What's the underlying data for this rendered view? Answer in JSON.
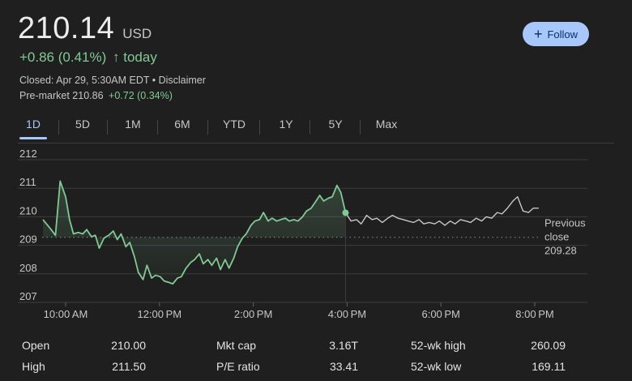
{
  "quote": {
    "price": "210.14",
    "currency": "USD",
    "change_text": "+0.86 (0.41%)",
    "change_arrow": "↑",
    "change_period": "today",
    "closed_text": "Closed: Apr 29, 5:30AM EDT • Disclaimer",
    "premarket_label": "Pre-market 210.86",
    "premarket_change": "+0.72 (0.34%)"
  },
  "follow_button": {
    "label": "Follow",
    "icon": "plus-icon"
  },
  "range_tabs": [
    "1D",
    "5D",
    "1M",
    "6M",
    "YTD",
    "1Y",
    "5Y",
    "Max"
  ],
  "active_tab": "1D",
  "colors": {
    "background": "#1f1f1f",
    "positive": "#81c995",
    "accent": "#a8c7fa",
    "line_after_hours": "#c4c7c5"
  },
  "chart_data": {
    "type": "line",
    "ylim": [
      207,
      212
    ],
    "yticks": [
      207,
      208,
      209,
      210,
      211,
      212
    ],
    "x_range": [
      "09:30",
      "20:30"
    ],
    "xticks": [
      {
        "t": "10:00",
        "label": "10:00 AM"
      },
      {
        "t": "12:00",
        "label": "12:00 PM"
      },
      {
        "t": "14:00",
        "label": "2:00 PM"
      },
      {
        "t": "16:00",
        "label": "4:00 PM"
      },
      {
        "t": "18:00",
        "label": "6:00 PM"
      },
      {
        "t": "20:00",
        "label": "8:00 PM"
      }
    ],
    "previous_close": 209.28,
    "previous_close_label": [
      "Previous",
      "close",
      "209.28"
    ],
    "regular_session": [
      [
        "09:31",
        209.9
      ],
      [
        "09:40",
        209.6
      ],
      [
        "09:47",
        209.35
      ],
      [
        "09:53",
        211.25
      ],
      [
        "10:00",
        210.7
      ],
      [
        "10:05",
        209.9
      ],
      [
        "10:10",
        209.4
      ],
      [
        "10:16",
        209.45
      ],
      [
        "10:22",
        209.4
      ],
      [
        "10:27",
        209.55
      ],
      [
        "10:33",
        209.3
      ],
      [
        "10:38",
        209.35
      ],
      [
        "10:43",
        208.9
      ],
      [
        "10:49",
        209.25
      ],
      [
        "10:55",
        209.35
      ],
      [
        "11:01",
        209.5
      ],
      [
        "11:06",
        209.2
      ],
      [
        "11:11",
        209.4
      ],
      [
        "11:17",
        208.95
      ],
      [
        "11:22",
        209.1
      ],
      [
        "11:28",
        208.6
      ],
      [
        "11:33",
        208.05
      ],
      [
        "11:39",
        207.8
      ],
      [
        "11:44",
        208.3
      ],
      [
        "11:50",
        207.85
      ],
      [
        "11:55",
        207.95
      ],
      [
        "12:01",
        207.9
      ],
      [
        "12:06",
        207.75
      ],
      [
        "12:12",
        207.7
      ],
      [
        "12:17",
        207.65
      ],
      [
        "12:23",
        207.85
      ],
      [
        "12:28",
        207.9
      ],
      [
        "12:34",
        208.2
      ],
      [
        "12:40",
        208.4
      ],
      [
        "12:45",
        208.5
      ],
      [
        "12:51",
        208.7
      ],
      [
        "12:56",
        208.35
      ],
      [
        "13:02",
        208.5
      ],
      [
        "13:07",
        208.3
      ],
      [
        "13:13",
        208.55
      ],
      [
        "13:18",
        208.15
      ],
      [
        "13:24",
        208.5
      ],
      [
        "13:29",
        208.2
      ],
      [
        "13:35",
        208.55
      ],
      [
        "13:40",
        208.95
      ],
      [
        "13:46",
        209.25
      ],
      [
        "13:51",
        209.4
      ],
      [
        "13:57",
        209.7
      ],
      [
        "14:02",
        209.85
      ],
      [
        "14:08",
        209.9
      ],
      [
        "14:13",
        210.15
      ],
      [
        "14:19",
        209.85
      ],
      [
        "14:24",
        209.95
      ],
      [
        "14:30",
        209.85
      ],
      [
        "14:35",
        209.9
      ],
      [
        "14:41",
        209.95
      ],
      [
        "14:46",
        209.85
      ],
      [
        "14:52",
        209.9
      ],
      [
        "14:57",
        209.85
      ],
      [
        "15:03",
        210.0
      ],
      [
        "15:08",
        210.2
      ],
      [
        "15:14",
        210.3
      ],
      [
        "15:19",
        210.5
      ],
      [
        "15:25",
        210.75
      ],
      [
        "15:30",
        210.55
      ],
      [
        "15:36",
        210.65
      ],
      [
        "15:41",
        210.7
      ],
      [
        "15:47",
        211.1
      ],
      [
        "15:52",
        210.85
      ],
      [
        "15:58",
        210.14
      ]
    ],
    "after_hours": [
      [
        "15:58",
        210.14
      ],
      [
        "16:05",
        209.85
      ],
      [
        "16:12",
        209.9
      ],
      [
        "16:18",
        209.75
      ],
      [
        "16:25",
        210.05
      ],
      [
        "16:32",
        209.9
      ],
      [
        "16:38",
        209.95
      ],
      [
        "16:45",
        209.8
      ],
      [
        "16:52",
        209.95
      ],
      [
        "16:58",
        210.05
      ],
      [
        "17:05",
        209.95
      ],
      [
        "17:12",
        209.9
      ],
      [
        "17:18",
        209.85
      ],
      [
        "17:25",
        209.8
      ],
      [
        "17:32",
        209.9
      ],
      [
        "17:38",
        209.75
      ],
      [
        "17:45",
        209.8
      ],
      [
        "17:52",
        209.75
      ],
      [
        "17:58",
        209.85
      ],
      [
        "18:05",
        209.7
      ],
      [
        "18:12",
        209.85
      ],
      [
        "18:18",
        209.75
      ],
      [
        "18:25",
        209.9
      ],
      [
        "18:32",
        209.85
      ],
      [
        "18:38",
        209.8
      ],
      [
        "18:45",
        209.95
      ],
      [
        "18:52",
        209.85
      ],
      [
        "18:58",
        210.0
      ],
      [
        "19:05",
        209.95
      ],
      [
        "19:12",
        210.15
      ],
      [
        "19:18",
        210.1
      ],
      [
        "19:25",
        210.3
      ],
      [
        "19:32",
        210.55
      ],
      [
        "19:38",
        210.7
      ],
      [
        "19:45",
        210.2
      ],
      [
        "19:52",
        210.15
      ],
      [
        "19:58",
        210.3
      ],
      [
        "20:05",
        210.3
      ]
    ]
  },
  "stats": [
    {
      "label": "Open",
      "value": "210.00"
    },
    {
      "label": "High",
      "value": "211.50"
    },
    {
      "label": "Mkt cap",
      "value": "3.16T"
    },
    {
      "label": "P/E ratio",
      "value": "33.41"
    },
    {
      "label": "52-wk high",
      "value": "260.09"
    },
    {
      "label": "52-wk low",
      "value": "169.11"
    }
  ]
}
